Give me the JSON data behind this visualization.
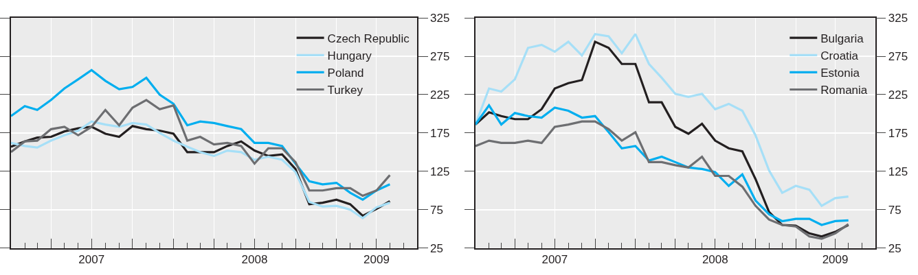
{
  "chart_data": [
    {
      "type": "line",
      "x": [
        "2007-01-01",
        "2007-02-01",
        "2007-03-01",
        "2007-04-01",
        "2007-05-01",
        "2007-06-01",
        "2007-07-01",
        "2007-08-01",
        "2007-09-01",
        "2007-10-01",
        "2007-11-01",
        "2007-12-01",
        "2008-01-01",
        "2008-02-01",
        "2008-03-01",
        "2008-04-01",
        "2008-05-01",
        "2008-06-01",
        "2008-07-01",
        "2008-08-01",
        "2008-09-01",
        "2008-10-01",
        "2008-11-01",
        "2008-12-01",
        "2009-01-01",
        "2009-02-01",
        "2009-03-01",
        "2009-04-01",
        "2009-05-01"
      ],
      "series": [
        {
          "name": "Czech Republic",
          "color": "#231f20",
          "values": [
            157,
            164,
            169,
            170,
            177,
            181,
            183,
            174,
            170,
            184,
            180,
            178,
            174,
            150,
            150,
            150,
            158,
            164,
            152,
            145,
            147,
            128,
            82,
            84,
            88,
            82,
            67,
            76,
            86
          ]
        },
        {
          "name": "Hungary",
          "color": "#a6dff7",
          "values": [
            162,
            158,
            156,
            165,
            172,
            178,
            190,
            186,
            183,
            188,
            186,
            175,
            165,
            157,
            150,
            145,
            152,
            150,
            140,
            144,
            140,
            124,
            85,
            79,
            80,
            75,
            64,
            78,
            84
          ]
        },
        {
          "name": "Poland",
          "color": "#00aeef",
          "values": [
            197,
            210,
            205,
            218,
            233,
            245,
            257,
            243,
            232,
            235,
            247,
            225,
            213,
            185,
            190,
            188,
            184,
            180,
            162,
            162,
            158,
            135,
            112,
            108,
            110,
            97,
            88,
            100,
            108
          ]
        },
        {
          "name": "Turkey",
          "color": "#6d6e71",
          "values": [
            150,
            164,
            165,
            180,
            183,
            172,
            183,
            205,
            185,
            208,
            218,
            206,
            211,
            165,
            170,
            160,
            162,
            158,
            135,
            155,
            155,
            137,
            100,
            100,
            103,
            103,
            93,
            100,
            120
          ]
        }
      ],
      "xlim": [
        "2007-01-01",
        "2009-07-01"
      ],
      "xticks": [
        {
          "value": "2007-04-01",
          "label": null
        },
        {
          "value": "2007-07-01",
          "label": "2007"
        },
        {
          "value": "2007-10-01",
          "label": null
        },
        {
          "value": "2008-01-01",
          "label": null
        },
        {
          "value": "2008-04-01",
          "label": null
        },
        {
          "value": "2008-07-01",
          "label": "2008"
        },
        {
          "value": "2008-10-01",
          "label": null
        },
        {
          "value": "2009-01-01",
          "label": null
        },
        {
          "value": "2009-04-01",
          "label": "2009"
        }
      ],
      "ylim": [
        25,
        325
      ],
      "yticks": [
        25,
        75,
        125,
        175,
        225,
        275,
        325
      ],
      "grid": true,
      "legend": "top right"
    },
    {
      "type": "line",
      "x": [
        "2007-01-01",
        "2007-02-01",
        "2007-03-01",
        "2007-04-01",
        "2007-05-01",
        "2007-06-01",
        "2007-07-01",
        "2007-08-01",
        "2007-09-01",
        "2007-10-01",
        "2007-11-01",
        "2007-12-01",
        "2008-01-01",
        "2008-02-01",
        "2008-03-01",
        "2008-04-01",
        "2008-05-01",
        "2008-06-01",
        "2008-07-01",
        "2008-08-01",
        "2008-09-01",
        "2008-10-01",
        "2008-11-01",
        "2008-12-01",
        "2009-01-01",
        "2009-02-01",
        "2009-03-01",
        "2009-04-01",
        "2009-05-01"
      ],
      "series": [
        {
          "name": "Bulgaria",
          "color": "#231f20",
          "values": [
            186,
            202,
            197,
            193,
            193,
            206,
            233,
            240,
            244,
            294,
            286,
            265,
            265,
            215,
            215,
            183,
            174,
            187,
            165,
            155,
            151,
            115,
            72,
            55,
            54,
            44,
            40,
            46,
            55
          ]
        },
        {
          "name": "Croatia",
          "color": "#a6dff7",
          "values": [
            186,
            233,
            229,
            245,
            286,
            290,
            281,
            294,
            276,
            304,
            301,
            279,
            304,
            265,
            247,
            226,
            222,
            226,
            206,
            213,
            204,
            172,
            126,
            97,
            106,
            101,
            80,
            90,
            92
          ]
        },
        {
          "name": "Estonia",
          "color": "#00aeef",
          "values": [
            186,
            211,
            186,
            201,
            197,
            195,
            208,
            204,
            195,
            197,
            176,
            155,
            158,
            139,
            144,
            137,
            130,
            128,
            124,
            106,
            121,
            87,
            69,
            60,
            63,
            63,
            55,
            60,
            61
          ]
        },
        {
          "name": "Romania",
          "color": "#6d6e71",
          "values": [
            158,
            165,
            162,
            162,
            165,
            162,
            183,
            186,
            190,
            190,
            180,
            165,
            176,
            137,
            137,
            133,
            130,
            144,
            119,
            119,
            105,
            80,
            62,
            55,
            53,
            40,
            37,
            44,
            56
          ]
        }
      ],
      "xlim": [
        "2007-01-01",
        "2009-07-01"
      ],
      "xticks": [
        {
          "value": "2007-04-01",
          "label": null
        },
        {
          "value": "2007-07-01",
          "label": "2007"
        },
        {
          "value": "2007-10-01",
          "label": null
        },
        {
          "value": "2008-01-01",
          "label": null
        },
        {
          "value": "2008-04-01",
          "label": null
        },
        {
          "value": "2008-07-01",
          "label": "2008"
        },
        {
          "value": "2008-10-01",
          "label": null
        },
        {
          "value": "2009-01-01",
          "label": null
        },
        {
          "value": "2009-04-01",
          "label": "2009"
        }
      ],
      "ylim": [
        25,
        325
      ],
      "yticks": [
        25,
        75,
        125,
        175,
        225,
        275,
        325
      ],
      "grid": true,
      "legend": "top right"
    }
  ]
}
